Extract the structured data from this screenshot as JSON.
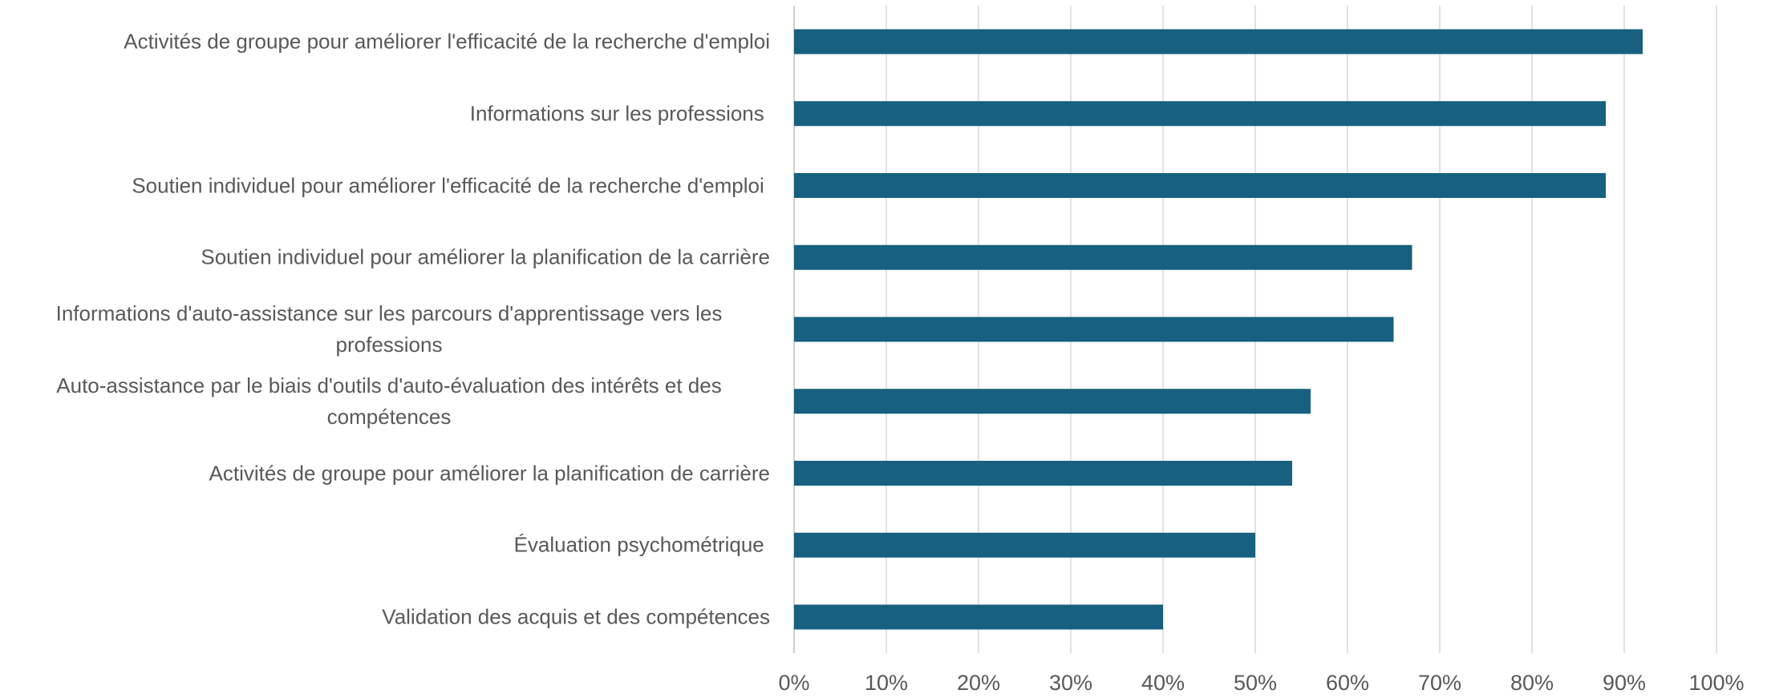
{
  "chart_data": {
    "type": "bar",
    "orientation": "horizontal",
    "categories": [
      "Activités de groupe pour améliorer l'efficacité de la recherche d'emploi",
      "Informations sur les professions ",
      "Soutien individuel pour améliorer l'efficacité de la recherche d'emploi ",
      "Soutien individuel pour améliorer la planification de la carrière",
      "Informations d'auto-assistance sur les parcours d'apprentissage vers les professions",
      "Auto-assistance par le biais d'outils d'auto-évaluation des intérêts et des compétences",
      "Activités de groupe pour améliorer la planification de carrière",
      "Évaluation psychométrique ",
      "Validation des acquis et des compétences"
    ],
    "values": [
      92,
      88,
      88,
      67,
      65,
      56,
      54,
      50,
      40
    ],
    "color": "#17607f",
    "xlim": [
      0,
      100
    ],
    "xticks": [
      {
        "value": 0,
        "label": "0%"
      },
      {
        "value": 10,
        "label": "10%"
      },
      {
        "value": 20,
        "label": "20%"
      },
      {
        "value": 30,
        "label": "30%"
      },
      {
        "value": 40,
        "label": "40%"
      },
      {
        "value": 50,
        "label": "50%"
      },
      {
        "value": 60,
        "label": "60%"
      },
      {
        "value": 70,
        "label": "70%"
      },
      {
        "value": 80,
        "label": "80%"
      },
      {
        "value": 90,
        "label": "90%"
      },
      {
        "value": 100,
        "label": "100%"
      }
    ],
    "grid": true
  }
}
